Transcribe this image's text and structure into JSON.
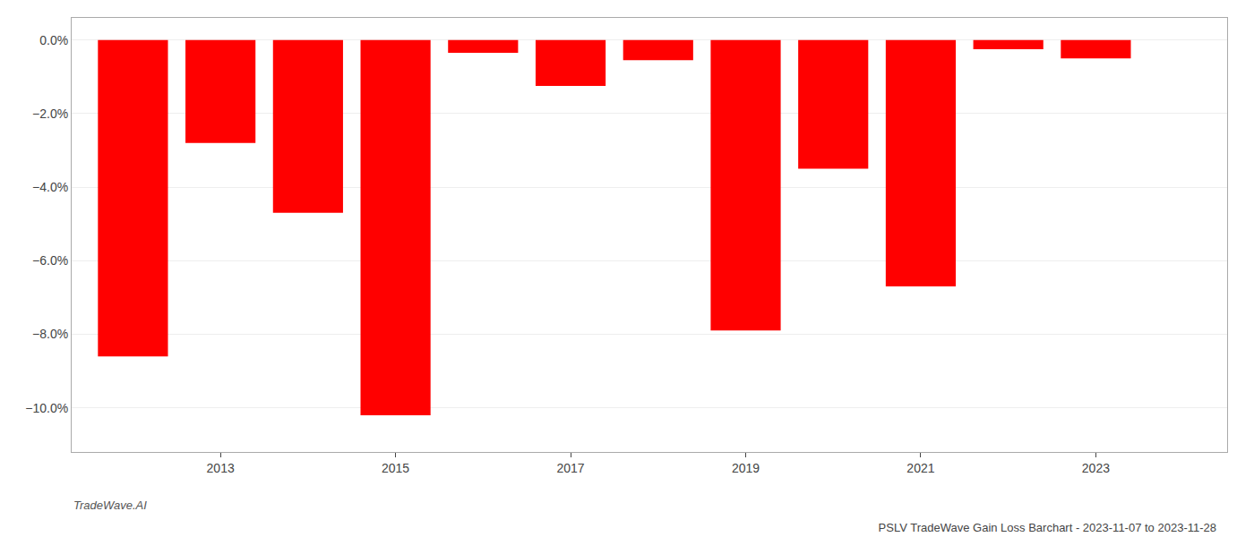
{
  "chart_data": {
    "type": "bar",
    "title": "PSLV TradeWave Gain Loss Barchart - 2023-11-07 to 2023-11-28",
    "annotations": [
      "TradeWave.AI"
    ],
    "x": [
      2012,
      2013,
      2014,
      2015,
      2016,
      2017,
      2018,
      2019,
      2020,
      2021,
      2022,
      2023
    ],
    "values": [
      -8.6,
      -2.8,
      -4.7,
      -10.2,
      -0.35,
      -1.25,
      -0.55,
      -7.9,
      -3.5,
      -6.7,
      -0.25,
      -0.5
    ],
    "color": "#ff0000",
    "xlim": [
      2011.3,
      2024.5
    ],
    "xticks": [
      2013,
      2015,
      2017,
      2019,
      2021,
      2023
    ],
    "ylim": [
      -11.2,
      0.6
    ],
    "yticks": [
      {
        "value": 0.0,
        "label": "0.0%"
      },
      {
        "value": -2.0,
        "label": "−2.0%"
      },
      {
        "value": -4.0,
        "label": "−4.0%"
      },
      {
        "value": -6.0,
        "label": "−6.0%"
      },
      {
        "value": -8.0,
        "label": "−8.0%"
      },
      {
        "value": -10.0,
        "label": "−10.0%"
      }
    ],
    "grid": true
  }
}
